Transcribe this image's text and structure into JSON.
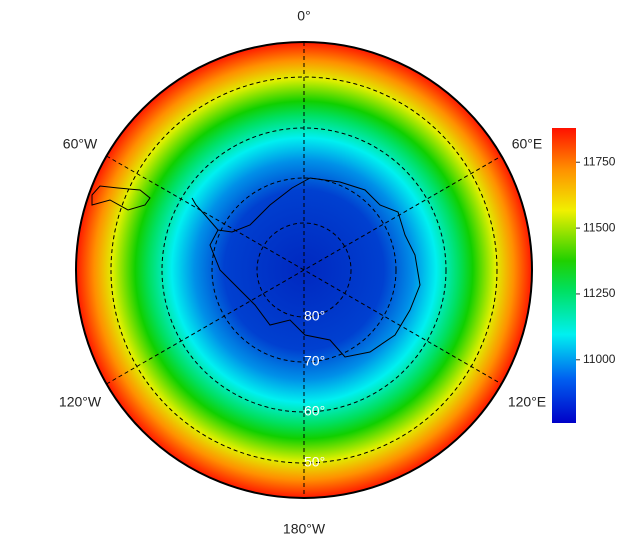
{
  "map": {
    "longitude_labels": [
      "0°",
      "60°E",
      "120°E",
      "180°W",
      "120°W",
      "60°W"
    ],
    "latitude_labels": [
      "80°",
      "70°",
      "60°",
      "50°"
    ],
    "colorbar": {
      "lim": [
        10760,
        11880
      ],
      "ticks": [
        11000,
        11250,
        11500,
        11750
      ]
    }
  }
}
